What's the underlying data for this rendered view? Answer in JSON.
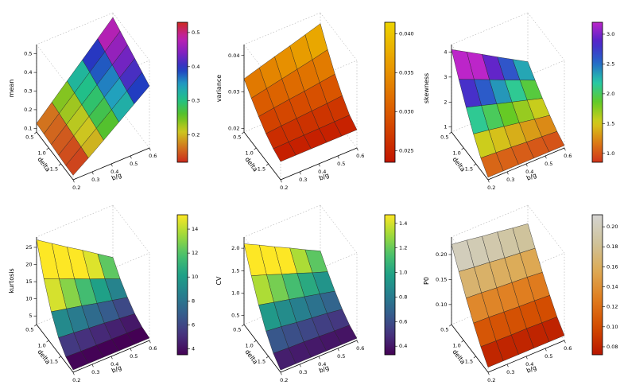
{
  "figure": {
    "background": "#ffffff",
    "rows": 2,
    "cols": 3
  },
  "palettes": {
    "rainbow_wrap": [
      "#cc2a1d",
      "#d2781e",
      "#cdc920",
      "#5cc121",
      "#21c186",
      "#219fc1",
      "#2139c1",
      "#7e21c1",
      "#c121b0",
      "#cc2a1d"
    ],
    "rainbow": [
      "#d0341b",
      "#dc7c15",
      "#d4cd1b",
      "#63ca25",
      "#25c9a8",
      "#2566c9",
      "#4d25c9",
      "#bc25c9"
    ],
    "heat": [
      "#c21500",
      "#d95500",
      "#e89600",
      "#edd400"
    ],
    "viridis": [
      "#440154",
      "#46327e",
      "#365c8d",
      "#277f8e",
      "#1fa187",
      "#4ac16d",
      "#a0da39",
      "#fde725"
    ],
    "heat_white": [
      "#b81500",
      "#d34c00",
      "#e07d1f",
      "#ddaa55",
      "#cfc39b",
      "#d4d4d2"
    ]
  },
  "chart_data": [
    {
      "type": "surface3d",
      "id": "mean",
      "xlabel": "delta",
      "ylabel": "b/g",
      "zlabel": "mean",
      "x": [
        0.5,
        0.8,
        1.1,
        1.4,
        1.7,
        2.0
      ],
      "y": [
        0.2,
        0.28,
        0.36,
        0.44,
        0.52,
        0.6
      ],
      "xlim": [
        0.5,
        2.0
      ],
      "ylim": [
        0.2,
        0.6
      ],
      "zlim": [
        0.08,
        0.55
      ],
      "x_tick_values": [
        0.5,
        1.0,
        1.5
      ],
      "x_tick_labels": [
        "0.5",
        "1.0",
        "1.5"
      ],
      "y_tick_values": [
        0.2,
        0.3,
        0.4,
        0.5,
        0.6
      ],
      "y_tick_labels": [
        "0.2",
        "0.3",
        "0.4",
        "0.5",
        "0.6"
      ],
      "z_tick_values": [
        0.1,
        0.2,
        0.3,
        0.4,
        0.5
      ],
      "z_tick_labels": [
        "0.1",
        "0.2",
        "0.3",
        "0.4",
        "0.5"
      ],
      "palette": "rainbow_wrap",
      "legend": {
        "min": 0.12,
        "max": 0.53,
        "tick_values": [
          0.2,
          0.3,
          0.4,
          0.5
        ],
        "tick_labels": [
          "0.2",
          "0.3",
          "0.4",
          "0.5"
        ]
      },
      "z_grid": [
        [
          0.126,
          0.206,
          0.286,
          0.365,
          0.445,
          0.525
        ],
        [
          0.121,
          0.197,
          0.273,
          0.35,
          0.426,
          0.503
        ],
        [
          0.115,
          0.188,
          0.261,
          0.334,
          0.407,
          0.48
        ],
        [
          0.11,
          0.179,
          0.249,
          0.318,
          0.388,
          0.458
        ],
        [
          0.105,
          0.171,
          0.237,
          0.303,
          0.369,
          0.435
        ],
        [
          0.104,
          0.162,
          0.224,
          0.287,
          0.35,
          0.413
        ]
      ]
    },
    {
      "type": "surface3d",
      "id": "variance",
      "xlabel": "delta",
      "ylabel": "b/g",
      "zlabel": "variance",
      "x": [
        0.5,
        0.8,
        1.1,
        1.4,
        1.7,
        2.0
      ],
      "y": [
        0.2,
        0.28,
        0.36,
        0.44,
        0.52,
        0.6
      ],
      "xlim": [
        0.5,
        2.0
      ],
      "ylim": [
        0.2,
        0.6
      ],
      "zlim": [
        0.019,
        0.043
      ],
      "x_tick_values": [
        0.5,
        1.0,
        1.5
      ],
      "x_tick_labels": [
        "0.5",
        "1.0",
        "1.5"
      ],
      "y_tick_values": [
        0.2,
        0.3,
        0.4,
        0.5,
        0.6
      ],
      "y_tick_labels": [
        "0.2",
        "0.3",
        "0.4",
        "0.5",
        "0.6"
      ],
      "z_tick_values": [
        0.02,
        0.03,
        0.04
      ],
      "z_tick_labels": [
        "0.02",
        "0.03",
        "0.04"
      ],
      "palette": "heat",
      "legend": {
        "min": 0.0235,
        "max": 0.0415,
        "tick_values": [
          0.025,
          0.03,
          0.035,
          0.04
        ],
        "tick_labels": [
          "0.025",
          "0.030",
          "0.035",
          "0.040"
        ]
      },
      "z_grid": [
        [
          0.0336,
          0.0349,
          0.0362,
          0.0374,
          0.0387,
          0.04
        ],
        [
          0.0309,
          0.0318,
          0.0327,
          0.0336,
          0.0345,
          0.0355
        ],
        [
          0.0285,
          0.0291,
          0.0297,
          0.0302,
          0.0308,
          0.0314
        ],
        [
          0.0264,
          0.0268,
          0.0271,
          0.0274,
          0.0277,
          0.0281
        ],
        [
          0.0249,
          0.025,
          0.0251,
          0.0252,
          0.0253,
          0.0254
        ],
        [
          0.024,
          0.024,
          0.024,
          0.024,
          0.024,
          0.024
        ]
      ]
    },
    {
      "type": "surface3d",
      "id": "skewness",
      "xlabel": "delta",
      "ylabel": "b/g",
      "zlabel": "skewness",
      "x": [
        0.5,
        0.8,
        1.1,
        1.4,
        1.7,
        2.0
      ],
      "y": [
        0.2,
        0.28,
        0.36,
        0.44,
        0.52,
        0.6
      ],
      "xlim": [
        0.5,
        2.0
      ],
      "ylim": [
        0.2,
        0.6
      ],
      "zlim": [
        0.8,
        4.3
      ],
      "x_tick_values": [
        0.5,
        1.0,
        1.5
      ],
      "x_tick_labels": [
        "0.5",
        "1.0",
        "1.5"
      ],
      "y_tick_values": [
        0.2,
        0.3,
        0.4,
        0.5,
        0.6
      ],
      "y_tick_labels": [
        "0.2",
        "0.3",
        "0.4",
        "0.5",
        "0.6"
      ],
      "z_tick_values": [
        1,
        2,
        3,
        4
      ],
      "z_tick_labels": [
        "1",
        "2",
        "3",
        "4"
      ],
      "palette": "rainbow",
      "legend": {
        "min": 0.85,
        "max": 3.2,
        "tick_values": [
          1.0,
          1.5,
          2.0,
          2.5,
          3.0
        ],
        "tick_labels": [
          "1.0",
          "1.5",
          "2.0",
          "2.5",
          "3.0"
        ]
      },
      "z_grid": [
        [
          4.1,
          3.75,
          3.4,
          3.04,
          2.69,
          2.34
        ],
        [
          3.29,
          3.03,
          2.77,
          2.5,
          2.24,
          1.98
        ],
        [
          2.55,
          2.37,
          2.18,
          2.0,
          1.82,
          1.64
        ],
        [
          1.87,
          1.77,
          1.66,
          1.55,
          1.44,
          1.34
        ],
        [
          1.29,
          1.25,
          1.21,
          1.16,
          1.12,
          1.08
        ],
        [
          0.9,
          0.9,
          0.9,
          0.9,
          0.9,
          0.9
        ]
      ]
    },
    {
      "type": "surface3d",
      "id": "kurtosis",
      "xlabel": "delta",
      "ylabel": "b/g",
      "zlabel": "kurtosis",
      "x": [
        0.5,
        0.8,
        1.1,
        1.4,
        1.7,
        2.0
      ],
      "y": [
        0.2,
        0.28,
        0.36,
        0.44,
        0.52,
        0.6
      ],
      "xlim": [
        0.5,
        2.0
      ],
      "ylim": [
        0.2,
        0.6
      ],
      "zlim": [
        2.5,
        28
      ],
      "x_tick_values": [
        0.5,
        1.0,
        1.5
      ],
      "x_tick_labels": [
        "0.5",
        "1.0",
        "1.5"
      ],
      "y_tick_values": [
        0.2,
        0.3,
        0.4,
        0.5,
        0.6
      ],
      "y_tick_labels": [
        "0.2",
        "0.3",
        "0.4",
        "0.5",
        "0.6"
      ],
      "z_tick_values": [
        5,
        10,
        15,
        20,
        25
      ],
      "z_tick_labels": [
        "5",
        "10",
        "15",
        "20",
        "25"
      ],
      "palette": "viridis",
      "legend": {
        "min": 3.5,
        "max": 15.2,
        "tick_values": [
          4,
          6,
          8,
          10,
          12,
          14
        ],
        "tick_labels": [
          "4",
          "6",
          "8",
          "10",
          "12",
          "14"
        ]
      },
      "z_grid": [
        [
          27.2,
          24.3,
          21.4,
          18.6,
          15.7,
          12.8
        ],
        [
          18.6,
          16.7,
          14.9,
          13.0,
          11.2,
          9.3
        ],
        [
          11.8,
          10.8,
          9.8,
          8.7,
          7.7,
          6.7
        ],
        [
          7.0,
          6.6,
          6.1,
          5.7,
          5.2,
          4.7
        ],
        [
          4.2,
          4.0,
          3.9,
          3.8,
          3.7,
          3.6
        ],
        [
          3.2,
          3.2,
          3.2,
          3.2,
          3.2,
          3.2
        ]
      ]
    },
    {
      "type": "surface3d",
      "id": "cv",
      "xlabel": "delta",
      "ylabel": "b/g",
      "zlabel": "CV",
      "x": [
        0.5,
        0.8,
        1.1,
        1.4,
        1.7,
        2.0
      ],
      "y": [
        0.2,
        0.28,
        0.36,
        0.44,
        0.52,
        0.6
      ],
      "xlim": [
        0.5,
        2.0
      ],
      "ylim": [
        0.2,
        0.6
      ],
      "zlim": [
        0.3,
        2.25
      ],
      "x_tick_values": [
        0.5,
        1.0,
        1.5
      ],
      "x_tick_labels": [
        "0.5",
        "1.0",
        "1.5"
      ],
      "y_tick_values": [
        0.2,
        0.3,
        0.4,
        0.5,
        0.6
      ],
      "y_tick_labels": [
        "0.2",
        "0.3",
        "0.4",
        "0.5",
        "0.6"
      ],
      "z_tick_values": [
        0.5,
        1.0,
        1.5,
        2.0
      ],
      "z_tick_labels": [
        "0.5",
        "1.0",
        "1.5",
        "2.0"
      ],
      "palette": "viridis",
      "legend": {
        "min": 0.33,
        "max": 1.47,
        "tick_values": [
          0.4,
          0.6,
          0.8,
          1.0,
          1.2,
          1.4
        ],
        "tick_labels": [
          "0.4",
          "0.6",
          "0.8",
          "1.0",
          "1.2",
          "1.4"
        ]
      },
      "z_grid": [
        [
          2.1,
          1.93,
          1.75,
          1.58,
          1.4,
          1.23
        ],
        [
          1.6,
          1.48,
          1.35,
          1.23,
          1.1,
          0.98
        ],
        [
          1.16,
          1.08,
          1.0,
          0.92,
          0.84,
          0.76
        ],
        [
          0.79,
          0.75,
          0.7,
          0.66,
          0.62,
          0.57
        ],
        [
          0.51,
          0.49,
          0.48,
          0.46,
          0.44,
          0.43
        ],
        [
          0.35,
          0.35,
          0.35,
          0.35,
          0.35,
          0.35
        ]
      ]
    },
    {
      "type": "surface3d",
      "id": "p0",
      "xlabel": "delta",
      "ylabel": "b/g",
      "zlabel": "P0",
      "x": [
        0.5,
        0.8,
        1.1,
        1.4,
        1.7,
        2.0
      ],
      "y": [
        0.2,
        0.28,
        0.36,
        0.44,
        0.52,
        0.6
      ],
      "xlim": [
        0.5,
        2.0
      ],
      "ylim": [
        0.2,
        0.6
      ],
      "zlim": [
        0.06,
        0.235
      ],
      "x_tick_values": [
        0.5,
        1.0,
        1.5
      ],
      "x_tick_labels": [
        "0.5",
        "1.0",
        "1.5"
      ],
      "y_tick_values": [
        0.2,
        0.3,
        0.4,
        0.5,
        0.6
      ],
      "y_tick_labels": [
        "0.2",
        "0.3",
        "0.4",
        "0.5",
        "0.6"
      ],
      "z_tick_values": [
        0.1,
        0.15,
        0.2
      ],
      "z_tick_labels": [
        "0.10",
        "0.15",
        "0.20"
      ],
      "palette": "heat_white",
      "legend": {
        "min": 0.072,
        "max": 0.212,
        "tick_values": [
          0.08,
          0.1,
          0.12,
          0.14,
          0.16,
          0.18,
          0.2
        ],
        "tick_labels": [
          "0.08",
          "0.10",
          "0.12",
          "0.14",
          "0.16",
          "0.18",
          "0.20"
        ]
      },
      "z_grid": [
        [
          0.22,
          0.216,
          0.211,
          0.207,
          0.202,
          0.198
        ],
        [
          0.185,
          0.181,
          0.178,
          0.174,
          0.171,
          0.168
        ],
        [
          0.151,
          0.149,
          0.146,
          0.144,
          0.142,
          0.139
        ],
        [
          0.12,
          0.119,
          0.117,
          0.115,
          0.114,
          0.112
        ],
        [
          0.092,
          0.091,
          0.09,
          0.09,
          0.089,
          0.088
        ],
        [
          0.07,
          0.07,
          0.07,
          0.07,
          0.07,
          0.07
        ]
      ]
    }
  ]
}
